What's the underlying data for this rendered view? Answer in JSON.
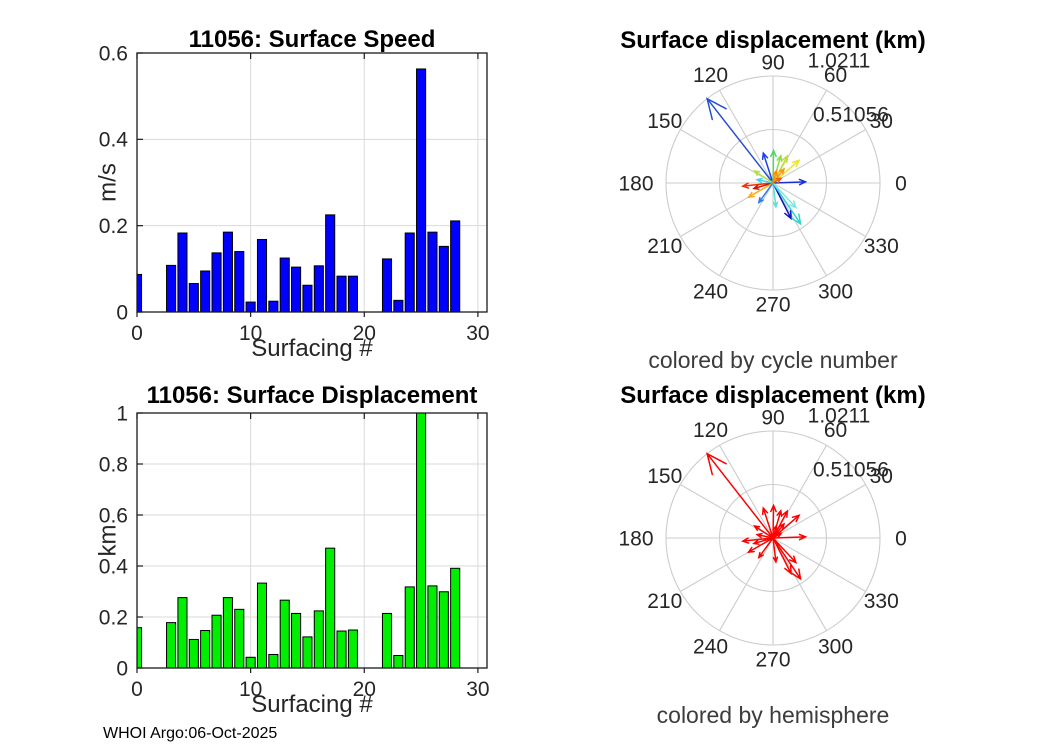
{
  "page": {
    "background": "#ffffff",
    "footer": "WHOI Argo:06-Oct-2025"
  },
  "chart_data": [
    {
      "id": "speed",
      "type": "bar",
      "title": "11056: Surface Speed",
      "xlabel": "Surfacing #",
      "ylabel": "m/s",
      "xlim": [
        0,
        30.8
      ],
      "ylim": [
        0,
        0.6
      ],
      "xticks": [
        0,
        10,
        20,
        30
      ],
      "yticks": [
        0,
        0.2,
        0.4,
        0.6
      ],
      "grid": true,
      "bar_color": "#0000ff",
      "bar_edge_color": "#000000",
      "x": [
        0,
        3,
        4,
        5,
        6,
        7,
        8,
        9,
        10,
        11,
        12,
        13,
        14,
        15,
        16,
        17,
        18,
        19,
        22,
        23,
        24,
        25,
        26,
        27,
        28
      ],
      "values": [
        0.087,
        0.108,
        0.183,
        0.066,
        0.095,
        0.137,
        0.185,
        0.14,
        0.023,
        0.168,
        0.025,
        0.125,
        0.104,
        0.062,
        0.107,
        0.225,
        0.083,
        0.083,
        0.123,
        0.027,
        0.183,
        0.563,
        0.185,
        0.152,
        0.211
      ]
    },
    {
      "id": "displacement",
      "type": "bar",
      "title": "11056: Surface Displacement",
      "xlabel": "Surfacing #",
      "ylabel": "km",
      "xlim": [
        0,
        30.8
      ],
      "ylim": [
        0,
        1
      ],
      "xticks": [
        0,
        10,
        20,
        30
      ],
      "yticks": [
        0,
        0.2,
        0.4,
        0.6,
        0.8,
        1
      ],
      "grid": true,
      "bar_color": "#00ee00",
      "bar_edge_color": "#000000",
      "x": [
        0,
        3,
        4,
        5,
        6,
        7,
        8,
        9,
        10,
        11,
        12,
        13,
        14,
        15,
        16,
        17,
        18,
        19,
        22,
        23,
        24,
        25,
        26,
        27,
        28
      ],
      "values": [
        0.158,
        0.178,
        0.276,
        0.112,
        0.147,
        0.207,
        0.276,
        0.23,
        0.042,
        0.333,
        0.053,
        0.266,
        0.214,
        0.122,
        0.224,
        0.47,
        0.145,
        0.149,
        0.214,
        0.049,
        0.318,
        1.0211,
        0.322,
        0.299,
        0.391
      ]
    },
    {
      "id": "polar_cycle",
      "type": "polar_quiver",
      "title": "Surface displacement (km)",
      "caption": "colored by cycle number",
      "rmax": 1.0211,
      "ring_tick_labels": [
        "0.51056",
        "1.0211"
      ],
      "angle_ticks": [
        0,
        30,
        60,
        90,
        120,
        150,
        180,
        210,
        240,
        270,
        300,
        330
      ],
      "arrows": [
        {
          "angle": 128,
          "r": 1.021,
          "color": "#2750d2"
        },
        {
          "angle": 108,
          "r": 0.3,
          "color": "#1c41e8"
        },
        {
          "angle": 89,
          "r": 0.31,
          "color": "#55d569"
        },
        {
          "angle": 74,
          "r": 0.27,
          "color": "#8fdc46"
        },
        {
          "angle": 62,
          "r": 0.29,
          "color": "#bfe02e"
        },
        {
          "angle": 41,
          "r": 0.33,
          "color": "#e8e82a"
        },
        {
          "angle": 52,
          "r": 0.17,
          "color": "#ff9416"
        },
        {
          "angle": 75,
          "r": 0.12,
          "color": "#ff8c00"
        },
        {
          "angle": 2,
          "r": 0.31,
          "color": "#1b2fd6"
        },
        {
          "angle": 186,
          "r": 0.29,
          "color": "#f53103"
        },
        {
          "angle": 168,
          "r": 0.155,
          "color": "#3ed2ea"
        },
        {
          "angle": 147,
          "r": 0.21,
          "color": "#b5e045"
        },
        {
          "angle": 196,
          "r": 0.19,
          "color": "#c21a02"
        },
        {
          "angle": 210,
          "r": 0.27,
          "color": "#ffa81c"
        },
        {
          "angle": 234,
          "r": 0.23,
          "color": "#2e7cf0"
        },
        {
          "angle": 277,
          "r": 0.23,
          "color": "#5ee0db"
        },
        {
          "angle": 297,
          "r": 0.38,
          "color": "#0e13bb"
        },
        {
          "angle": 304,
          "r": 0.47,
          "color": "#30d6cc"
        },
        {
          "angle": 313,
          "r": 0.32,
          "color": "#7ce8e4"
        },
        {
          "angle": 30,
          "r": 0.09,
          "color": "#e85f10"
        }
      ]
    },
    {
      "id": "polar_hemisphere",
      "type": "polar_quiver",
      "title": "Surface displacement (km)",
      "caption": "colored by hemisphere",
      "rmax": 1.0211,
      "ring_tick_labels": [
        "0.51056",
        "1.0211"
      ],
      "angle_ticks": [
        0,
        30,
        60,
        90,
        120,
        150,
        180,
        210,
        240,
        270,
        300,
        330
      ],
      "arrow_color": "#ff0000",
      "arrows": [
        {
          "angle": 128,
          "r": 1.021
        },
        {
          "angle": 108,
          "r": 0.3
        },
        {
          "angle": 89,
          "r": 0.31
        },
        {
          "angle": 74,
          "r": 0.27
        },
        {
          "angle": 62,
          "r": 0.29
        },
        {
          "angle": 41,
          "r": 0.33
        },
        {
          "angle": 52,
          "r": 0.17
        },
        {
          "angle": 75,
          "r": 0.12
        },
        {
          "angle": 2,
          "r": 0.31
        },
        {
          "angle": 186,
          "r": 0.29
        },
        {
          "angle": 168,
          "r": 0.155
        },
        {
          "angle": 147,
          "r": 0.21
        },
        {
          "angle": 196,
          "r": 0.19
        },
        {
          "angle": 210,
          "r": 0.27
        },
        {
          "angle": 234,
          "r": 0.23
        },
        {
          "angle": 277,
          "r": 0.23
        },
        {
          "angle": 297,
          "r": 0.38
        },
        {
          "angle": 304,
          "r": 0.47
        },
        {
          "angle": 313,
          "r": 0.32
        },
        {
          "angle": 30,
          "r": 0.09
        }
      ]
    }
  ]
}
